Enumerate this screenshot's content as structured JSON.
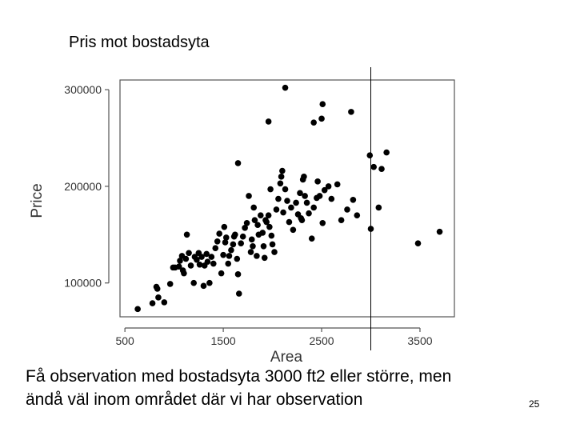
{
  "slide": {
    "title": "Pris mot bostadsyta",
    "caption_line1": "Få observation med bostadsyta 3000 ft2 eller större, men",
    "caption_line2": "ändå väl inom området där vi har observation",
    "page_number": "25"
  },
  "chart_data": {
    "type": "scatter",
    "title": "",
    "xlabel": "Area",
    "ylabel": "Price",
    "xlim": [
      450,
      3850
    ],
    "ylim": [
      65000,
      310000
    ],
    "xticks": [
      500,
      1500,
      2500,
      3500
    ],
    "yticks": [
      100000,
      200000,
      300000
    ],
    "xtick_labels": [
      "500",
      "1500",
      "2500",
      "3500"
    ],
    "ytick_labels": [
      "100000",
      "200000",
      "300000"
    ],
    "grid": false,
    "point_color": "#000000",
    "reference_line": {
      "axis": "x",
      "value": 3000
    },
    "points": [
      [
        630,
        73000
      ],
      [
        780,
        79000
      ],
      [
        840,
        85000
      ],
      [
        900,
        80000
      ],
      [
        830,
        94000
      ],
      [
        820,
        96000
      ],
      [
        960,
        99000
      ],
      [
        990,
        116000
      ],
      [
        1010,
        116000
      ],
      [
        1050,
        117000
      ],
      [
        1060,
        123000
      ],
      [
        1080,
        128000
      ],
      [
        1090,
        113000
      ],
      [
        1100,
        110000
      ],
      [
        1120,
        125000
      ],
      [
        1130,
        150000
      ],
      [
        1150,
        131000
      ],
      [
        1170,
        118000
      ],
      [
        1200,
        100000
      ],
      [
        1210,
        127000
      ],
      [
        1230,
        124000
      ],
      [
        1250,
        131000
      ],
      [
        1260,
        119000
      ],
      [
        1280,
        127000
      ],
      [
        1300,
        97000
      ],
      [
        1310,
        118000
      ],
      [
        1330,
        130000
      ],
      [
        1340,
        122000
      ],
      [
        1360,
        100000
      ],
      [
        1380,
        127000
      ],
      [
        1400,
        120000
      ],
      [
        1420,
        136000
      ],
      [
        1440,
        143000
      ],
      [
        1460,
        151000
      ],
      [
        1480,
        110000
      ],
      [
        1500,
        129000
      ],
      [
        1510,
        158000
      ],
      [
        1520,
        142000
      ],
      [
        1530,
        147000
      ],
      [
        1550,
        120000
      ],
      [
        1560,
        128000
      ],
      [
        1580,
        134000
      ],
      [
        1600,
        140000
      ],
      [
        1610,
        148000
      ],
      [
        1620,
        150000
      ],
      [
        1640,
        125000
      ],
      [
        1650,
        109000
      ],
      [
        1660,
        89000
      ],
      [
        1680,
        141000
      ],
      [
        1700,
        148000
      ],
      [
        1720,
        157000
      ],
      [
        1740,
        162000
      ],
      [
        1760,
        190000
      ],
      [
        1650,
        224000
      ],
      [
        1780,
        132000
      ],
      [
        1790,
        145000
      ],
      [
        1800,
        138000
      ],
      [
        1810,
        178000
      ],
      [
        1820,
        165000
      ],
      [
        1840,
        128000
      ],
      [
        1850,
        160000
      ],
      [
        1860,
        150000
      ],
      [
        1880,
        170000
      ],
      [
        1900,
        152000
      ],
      [
        1910,
        138000
      ],
      [
        1920,
        126000
      ],
      [
        1930,
        165000
      ],
      [
        1940,
        163000
      ],
      [
        1960,
        170000
      ],
      [
        1970,
        158000
      ],
      [
        1980,
        197000
      ],
      [
        1990,
        149000
      ],
      [
        2000,
        140000
      ],
      [
        2020,
        132000
      ],
      [
        2040,
        176000
      ],
      [
        2060,
        187000
      ],
      [
        2080,
        203000
      ],
      [
        2090,
        210000
      ],
      [
        2100,
        216000
      ],
      [
        2110,
        173000
      ],
      [
        2130,
        197000
      ],
      [
        2150,
        185000
      ],
      [
        2170,
        163000
      ],
      [
        2190,
        178000
      ],
      [
        2210,
        155000
      ],
      [
        2240,
        183000
      ],
      [
        2260,
        171000
      ],
      [
        2280,
        193000
      ],
      [
        2290,
        167000
      ],
      [
        2300,
        165000
      ],
      [
        2310,
        207000
      ],
      [
        2320,
        210000
      ],
      [
        2330,
        190000
      ],
      [
        2350,
        183000
      ],
      [
        2370,
        172000
      ],
      [
        2400,
        146000
      ],
      [
        2420,
        178000
      ],
      [
        2450,
        188000
      ],
      [
        2460,
        205000
      ],
      [
        2480,
        190000
      ],
      [
        2510,
        162000
      ],
      [
        2530,
        196000
      ],
      [
        2570,
        200000
      ],
      [
        2600,
        187000
      ],
      [
        2660,
        202000
      ],
      [
        2700,
        165000
      ],
      [
        2760,
        176000
      ],
      [
        2820,
        186000
      ],
      [
        2860,
        170000
      ],
      [
        3000,
        156000
      ],
      [
        2990,
        232000
      ],
      [
        3030,
        220000
      ],
      [
        3080,
        178000
      ],
      [
        3110,
        218000
      ],
      [
        3160,
        235000
      ],
      [
        3480,
        141000
      ],
      [
        3700,
        153000
      ],
      [
        1960,
        267000
      ],
      [
        2130,
        302000
      ],
      [
        2420,
        266000
      ],
      [
        2500,
        270000
      ],
      [
        2510,
        285000
      ],
      [
        2800,
        277000
      ]
    ]
  }
}
